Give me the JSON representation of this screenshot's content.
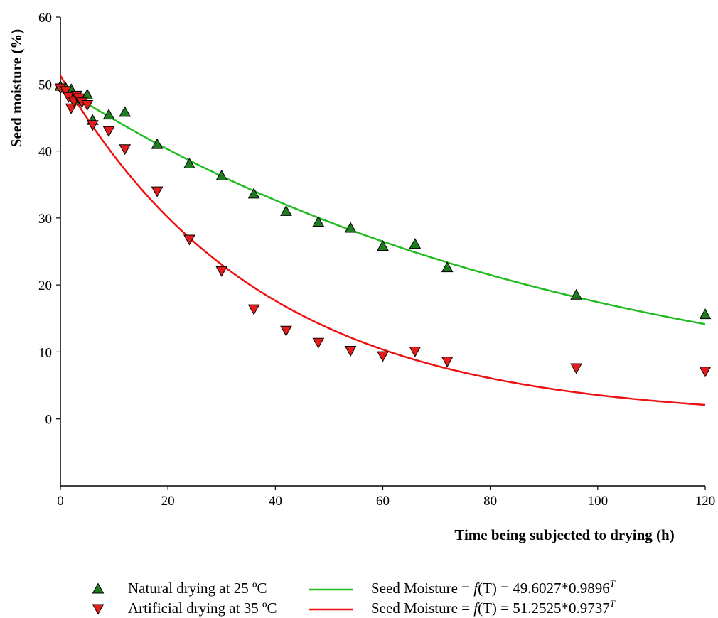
{
  "chart_data": {
    "type": "scatter",
    "xlabel": "Time being subjected to drying (h)",
    "ylabel": "Seed moisture (%)",
    "xlim": [
      0,
      120
    ],
    "ylim": [
      -10,
      60
    ],
    "x_ticks": [
      "0",
      "20",
      "40",
      "60",
      "80",
      "100",
      "120"
    ],
    "y_ticks": [
      "0",
      "10",
      "20",
      "30",
      "40",
      "50",
      "60"
    ],
    "x_tick_values": [
      0,
      20,
      40,
      60,
      80,
      100,
      120
    ],
    "y_tick_values": [
      0,
      10,
      20,
      30,
      40,
      50,
      60
    ],
    "grid": false,
    "legend_position": "bottom",
    "series": [
      {
        "name": "Natural drying at 25 ºC",
        "marker": "triangle-up",
        "color": "#1e7b1e",
        "x": [
          0,
          1,
          2,
          3,
          4,
          5,
          6,
          9,
          12,
          18,
          24,
          30,
          36,
          42,
          48,
          54,
          60,
          66,
          72,
          96,
          120
        ],
        "y": [
          49.7,
          49.4,
          49.2,
          48.0,
          47.6,
          48.4,
          44.6,
          45.4,
          45.8,
          41.0,
          38.1,
          36.3,
          33.6,
          31.0,
          29.4,
          28.5,
          25.8,
          26.1,
          22.6,
          18.5,
          15.6
        ]
      },
      {
        "name": "Artificial drying at 35 ºC",
        "marker": "triangle-down",
        "color": "#e51c1c",
        "x": [
          0,
          1,
          1.5,
          2,
          2.5,
          3,
          3.5,
          4,
          5,
          6,
          9,
          12,
          18,
          24,
          30,
          36,
          42,
          48,
          54,
          60,
          66,
          72,
          96,
          120
        ],
        "y": [
          49.4,
          49.0,
          48.1,
          46.4,
          47.4,
          48.3,
          47.9,
          47.3,
          46.9,
          43.9,
          43.0,
          40.3,
          34.0,
          26.8,
          22.1,
          16.4,
          13.2,
          11.4,
          10.2,
          9.4,
          10.1,
          8.6,
          7.6,
          7.1
        ]
      }
    ],
    "fits": [
      {
        "name": "Seed Moisture = f(T) = 49.6027*0.9896^T",
        "color": "#22bb22",
        "a": 49.6027,
        "b": 0.9896,
        "label_prefix": "Seed Moisture = ",
        "label_f": "f",
        "label_mid": "(T) = 49.6027*0.9896",
        "label_exp": "T"
      },
      {
        "name": "Seed Moisture = f(T) = 51.2525*0.9737^T",
        "color": "#ee1111",
        "a": 51.2525,
        "b": 0.9737,
        "label_prefix": "Seed Moisture = ",
        "label_f": "f",
        "label_mid": "(T) = 51.2525*0.9737",
        "label_exp": "T"
      }
    ]
  }
}
